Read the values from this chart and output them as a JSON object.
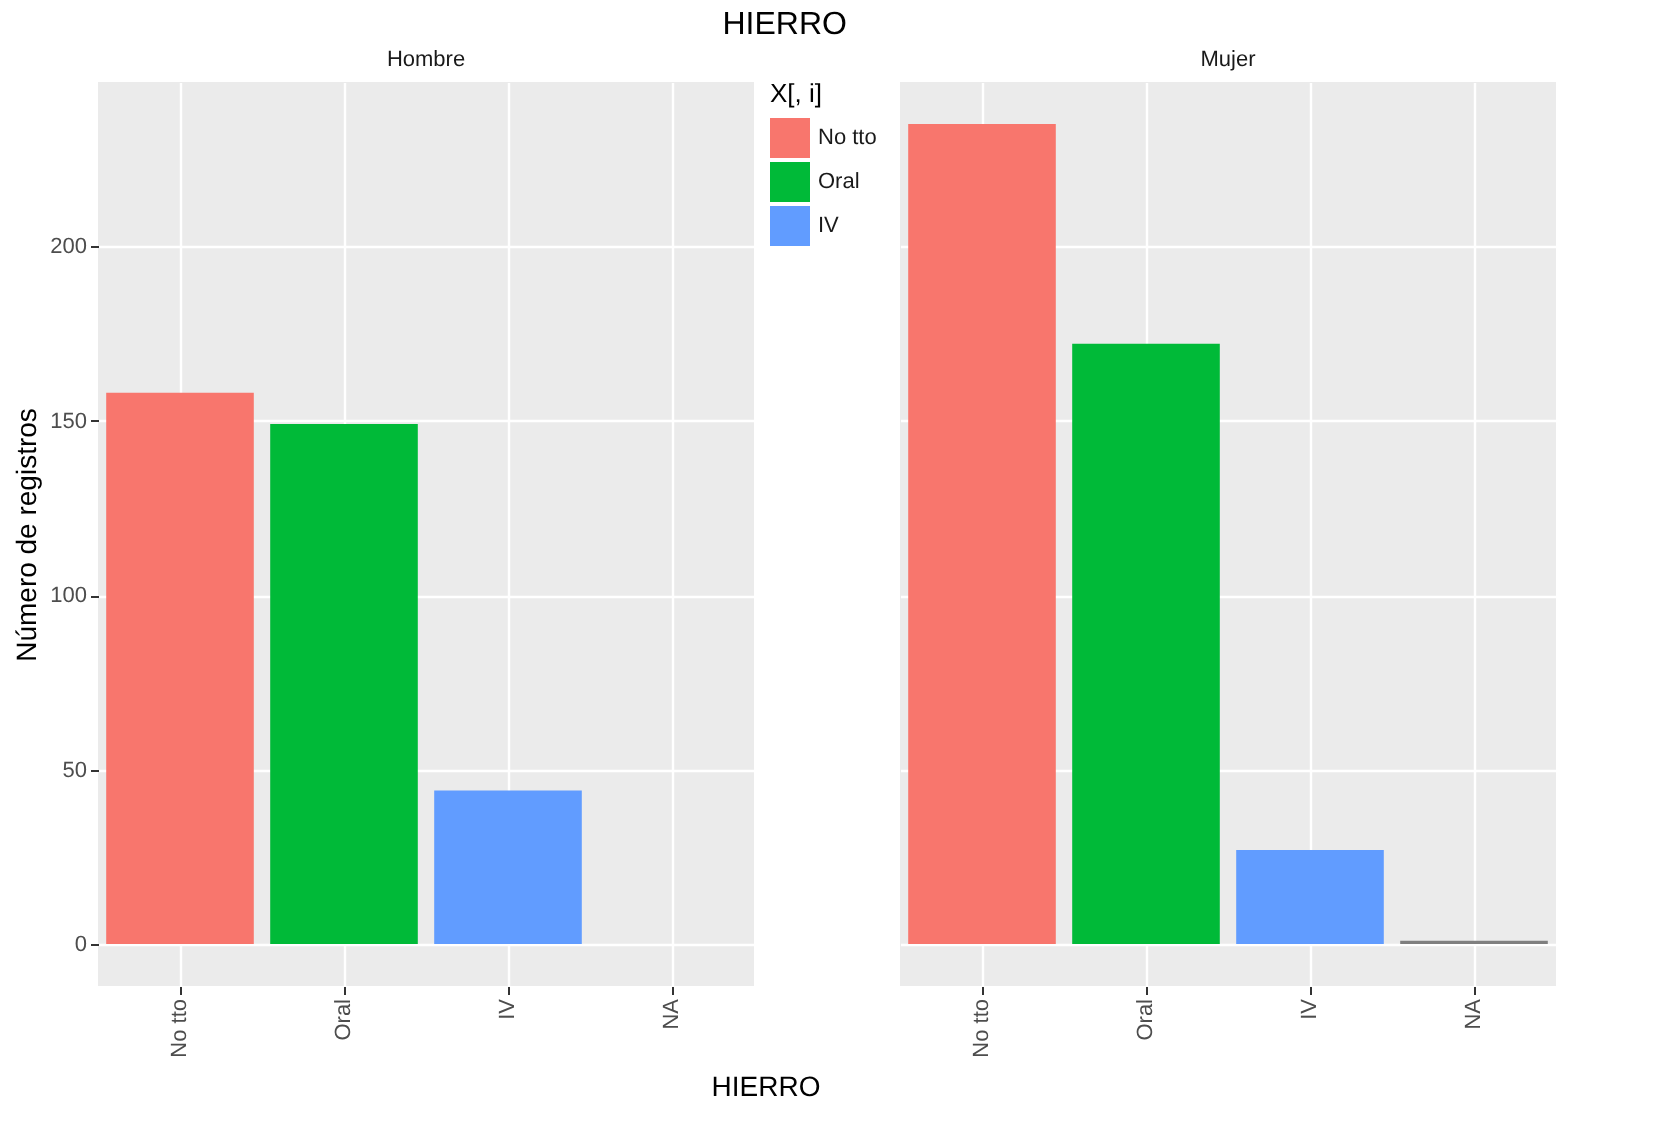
{
  "chart_data": [
    {
      "type": "bar",
      "title": "HIERRO",
      "subtitle": "Hombre",
      "xlabel": "HIERRO",
      "ylabel": "Número de registros",
      "categories": [
        "No tto",
        "Oral",
        "IV",
        "NA"
      ],
      "series": [
        {
          "name": "No tto",
          "color": "#f8766d",
          "values": [
            158,
            null,
            null,
            null
          ]
        },
        {
          "name": "Oral",
          "color": "#00ba38",
          "values": [
            null,
            149,
            null,
            null
          ]
        },
        {
          "name": "IV",
          "color": "#619cff",
          "values": [
            null,
            null,
            44,
            null
          ]
        }
      ],
      "ylim": [
        -12,
        247
      ],
      "yticks": [
        0,
        50,
        100,
        150,
        200
      ],
      "grid": true,
      "legend": "right",
      "legend_title": "X[, i]"
    },
    {
      "type": "bar",
      "subtitle": "Mujer",
      "categories": [
        "No tto",
        "Oral",
        "IV",
        "NA"
      ],
      "series": [
        {
          "color": "#f8766d",
          "values": [
            235,
            null,
            null,
            null
          ]
        },
        {
          "color": "#00ba38",
          "values": [
            null,
            172,
            null,
            null
          ]
        },
        {
          "color": "#619cff",
          "values": [
            null,
            null,
            27,
            null
          ]
        },
        {
          "color": "#7f7f7f",
          "values": [
            null,
            null,
            null,
            1
          ]
        }
      ],
      "ylim": [
        -12,
        247
      ],
      "yticks": [
        0,
        50,
        100,
        150,
        200
      ],
      "grid": true,
      "tick_labels": "x"
    }
  ]
}
